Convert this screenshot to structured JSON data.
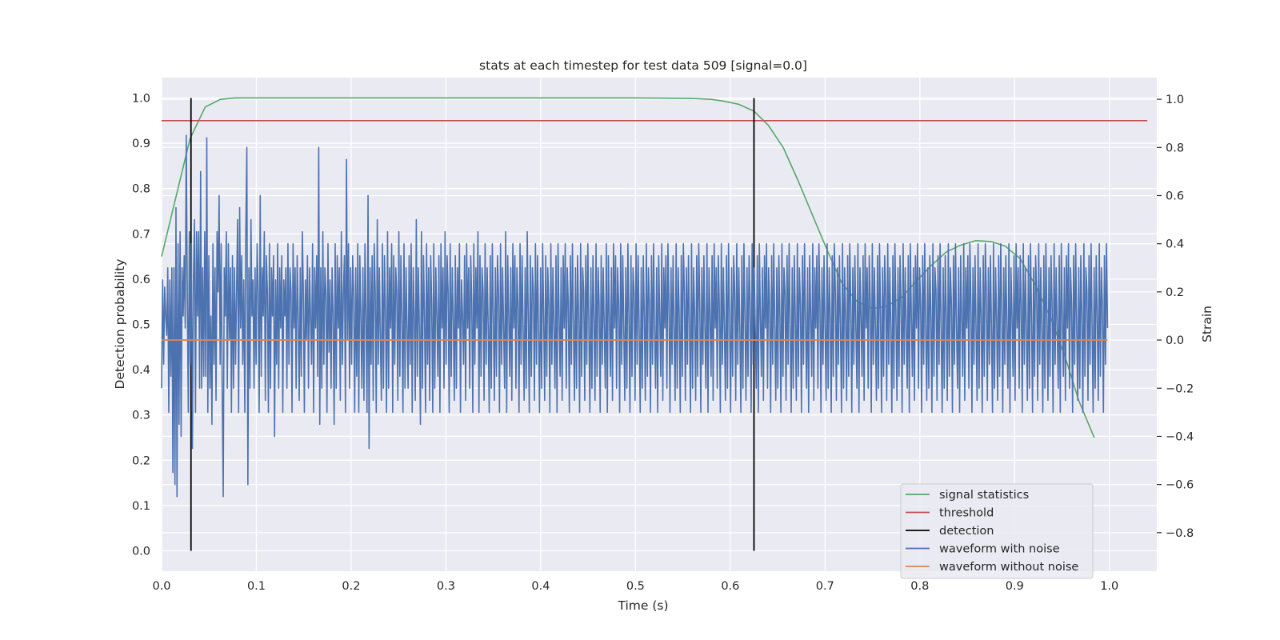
{
  "chart_data": {
    "type": "line",
    "title": "stats at each timestep for test data 509 [signal=0.0]",
    "xlabel": "Time (s)",
    "ylabel_left": "Detection probability",
    "ylabel_right": "Strain",
    "xlim": [
      0.0,
      1.05
    ],
    "ylim_left": [
      -0.045,
      1.045
    ],
    "ylim_right": [
      -0.96,
      1.09
    ],
    "x_ticks": [
      "0.0",
      "0.1",
      "0.2",
      "0.3",
      "0.4",
      "0.5",
      "0.6",
      "0.7",
      "0.8",
      "0.9",
      "1.0"
    ],
    "y_ticks_left": [
      "0.0",
      "0.1",
      "0.2",
      "0.3",
      "0.4",
      "0.5",
      "0.6",
      "0.7",
      "0.8",
      "0.9",
      "1.0"
    ],
    "y_ticks_right": [
      "−0.8",
      "−0.6",
      "−0.4",
      "−0.2",
      "0.0",
      "0.2",
      "0.4",
      "0.6",
      "0.8",
      "1.0"
    ],
    "grid": true,
    "legend_position": "lower right",
    "colors": {
      "signal": "#55a868",
      "threshold": "#c44e52",
      "detection": "#000000",
      "noisy": "#4c72b0",
      "clean": "#dd8452",
      "plot_background": "#eaeaf2",
      "grid": "#ffffff"
    },
    "series": [
      {
        "name": "signal statistics",
        "axis": "left",
        "color": "#55a868",
        "x": [
          0.0,
          0.015,
          0.03,
          0.046,
          0.062,
          0.078,
          0.1,
          0.2,
          0.3,
          0.4,
          0.5,
          0.56,
          0.58,
          0.593,
          0.609,
          0.625,
          0.64,
          0.656,
          0.671,
          0.687,
          0.703,
          0.718,
          0.734,
          0.75,
          0.765,
          0.781,
          0.796,
          0.812,
          0.828,
          0.843,
          0.859,
          0.875,
          0.89,
          0.906,
          0.921,
          0.937,
          0.953,
          0.968,
          0.984
        ],
        "y": [
          0.65,
          0.78,
          0.91,
          0.98,
          0.997,
          1.0,
          1.0,
          1.0,
          1.0,
          1.0,
          1.0,
          0.999,
          0.997,
          0.993,
          0.986,
          0.971,
          0.94,
          0.89,
          0.82,
          0.74,
          0.66,
          0.59,
          0.55,
          0.535,
          0.54,
          0.56,
          0.595,
          0.63,
          0.66,
          0.675,
          0.685,
          0.683,
          0.673,
          0.645,
          0.59,
          0.52,
          0.43,
          0.33,
          0.25
        ]
      },
      {
        "name": "threshold",
        "axis": "left",
        "color": "#c44e52",
        "x": [
          0.0,
          1.04
        ],
        "y": [
          0.95,
          0.95
        ]
      },
      {
        "name": "detection",
        "axis": "left",
        "color": "#000000",
        "segments": [
          {
            "x": 0.031,
            "y": [
              0.0,
              1.0
            ]
          },
          {
            "x": 0.625,
            "y": [
              0.0,
              1.0
            ]
          }
        ]
      },
      {
        "name": "waveform with noise",
        "axis": "right",
        "color": "#4c72b0",
        "x_range": [
          0.0,
          0.998
        ],
        "y": [
          -0.2,
          0.25,
          -0.1,
          0.22,
          0.1,
          0.02,
          0.3,
          -0.3,
          0.25,
          -0.15,
          0.3,
          -0.55,
          0.3,
          -0.6,
          0.55,
          -0.65,
          0.4,
          -0.35,
          0.45,
          -0.4,
          0.3,
          0.1,
          0.35,
          0.05,
          0.85,
          0.2,
          -0.3,
          0.45,
          -0.1,
          0.4,
          -0.45,
          0.25,
          0.5,
          -0.3,
          0.45,
          0.1,
          0.45,
          -0.2,
          0.7,
          -0.2,
          0.3,
          -0.15,
          0.45,
          -0.15,
          0.84,
          -0.3,
          0.35,
          -0.2,
          0.1,
          -0.35,
          0.4,
          -0.1,
          0.3,
          -0.25,
          0.45,
          0.2,
          0.6,
          -0.1,
          0.4,
          -0.2,
          -0.65,
          0.3,
          0.1,
          0.45,
          -0.2,
          0.4,
          0.0,
          0.3,
          -0.3,
          0.35,
          -0.2,
          0.3,
          -0.1,
          0.2,
          0.5,
          -0.3,
          0.55,
          0.05,
          0.35,
          -0.1,
          0.25,
          -0.3,
          0.45,
          0.8,
          -0.6,
          0.3,
          -0.2,
          0.5,
          0.1,
          0.25,
          -0.2,
          0.3,
          -0.1,
          0.4,
          0.2,
          -0.3,
          0.6,
          -0.15,
          0.3,
          0.1,
          0.45,
          -0.25,
          0.35,
          0.2,
          -0.3,
          0.4,
          -0.2,
          0.3,
          0.1,
          0.35,
          -0.4,
          0.25,
          -0.1,
          0.4,
          -0.2,
          0.3,
          0.05,
          0.35,
          -0.3,
          0.25,
          0.1,
          0.3,
          -0.2,
          0.4,
          -0.1,
          0.3,
          0.2,
          -0.3,
          0.4,
          0.05,
          0.3,
          -0.2,
          0.35,
          0.1,
          -0.25,
          0.3,
          -0.15,
          0.45,
          0.2,
          -0.3,
          0.25,
          0.0,
          0.35,
          -0.2,
          0.3,
          0.1,
          -0.1,
          0.4,
          -0.3,
          0.3,
          0.05,
          0.35,
          -0.15,
          0.8,
          -0.35,
          0.3,
          -0.2,
          0.45,
          -0.1,
          0.3,
          0.2,
          -0.3,
          0.4,
          -0.05,
          0.25,
          -0.2,
          0.3,
          0.1,
          -0.35,
          0.4,
          -0.2,
          0.35,
          0.05,
          0.3,
          -0.25,
          0.45,
          -0.1,
          0.2,
          0.35,
          -0.3,
          0.75,
          0.0,
          0.4,
          -0.2,
          0.3,
          -0.1,
          0.35,
          0.2,
          -0.3,
          0.3,
          -0.15,
          0.4,
          -0.3,
          0.35,
          0.1,
          -0.2,
          0.3,
          -0.25,
          0.4,
          0.1,
          -0.3,
          0.6,
          -0.45,
          0.3,
          -0.1,
          0.35,
          -0.25,
          0.4,
          0.2,
          -0.3,
          0.5,
          -0.1,
          0.3,
          0.0,
          -0.25,
          0.4,
          -0.2,
          0.35,
          0.1,
          -0.3,
          0.45,
          -0.2,
          0.3,
          0.05,
          0.4,
          -0.3,
          0.35,
          -0.1,
          0.3,
          0.2,
          -0.25,
          0.45,
          -0.15,
          0.35,
          0.1,
          -0.3,
          0.4,
          -0.2,
          0.3,
          0.05,
          -0.2,
          0.35,
          -0.1,
          0.4,
          -0.3,
          0.3,
          0.1,
          -0.25,
          0.5,
          -0.15,
          0.3,
          0.05,
          -0.35,
          0.45,
          -0.2,
          0.35,
          0.1,
          -0.3,
          0.4,
          -0.1,
          0.3,
          -0.25,
          0.35,
          0.15,
          -0.3,
          0.4,
          -0.2,
          0.3,
          0.1,
          -0.15,
          0.35,
          -0.3,
          0.4,
          0.05,
          0.3,
          -0.2,
          0.45,
          -0.1,
          0.35,
          0.2,
          -0.3,
          0.4,
          -0.15,
          0.3,
          0.1,
          -0.25,
          0.35,
          -0.2,
          0.3,
          0.05,
          0.4,
          -0.3,
          0.25,
          0.1,
          -0.1,
          0.35,
          -0.25,
          0.4,
          0.05,
          0.3,
          -0.2,
          0.35,
          0.15,
          -0.3,
          0.4,
          -0.1,
          0.3,
          0.05,
          0.45,
          -0.3,
          0.35,
          -0.15,
          0.3,
          0.2,
          -0.25,
          0.4,
          -0.1,
          0.3,
          0.05,
          -0.3,
          0.35,
          -0.2,
          0.4,
          0.1,
          -0.25,
          0.3,
          -0.15,
          0.35,
          0.2,
          -0.3,
          0.4,
          -0.1,
          0.3,
          0.05,
          -0.2,
          0.45,
          -0.3,
          0.35,
          0.1,
          -0.15,
          0.3,
          -0.25,
          0.4,
          0.05,
          0.35,
          -0.2,
          0.3,
          0.15,
          -0.3,
          0.4,
          -0.1,
          0.35,
          0.05,
          -0.25,
          0.3,
          -0.2,
          0.45,
          0.1,
          -0.3,
          0.35,
          -0.15,
          0.3,
          0.2,
          -0.25,
          0.4,
          -0.1,
          0.35,
          0.05,
          -0.3,
          0.3,
          -0.2,
          0.4,
          0.1,
          -0.25,
          0.35,
          -0.15,
          0.3,
          0.15,
          -0.3,
          0.4,
          -0.1,
          0.3,
          0.05,
          -0.2,
          0.35,
          -0.3,
          0.4,
          0.1,
          -0.15,
          0.3,
          -0.25,
          0.35,
          0.05,
          0.4,
          -0.2,
          0.3,
          0.15,
          -0.3,
          0.35,
          -0.1,
          0.4,
          0.05,
          -0.25,
          0.3,
          -0.2,
          0.35,
          0.1,
          -0.3,
          0.4,
          -0.15,
          0.3,
          0.2,
          -0.25,
          0.35,
          -0.1,
          0.4,
          0.05,
          -0.3,
          0.3,
          -0.2,
          0.35,
          0.1,
          -0.25,
          0.4,
          -0.15,
          0.3,
          0.15,
          -0.3,
          0.35,
          -0.1,
          0.3,
          0.05,
          -0.2,
          0.4,
          -0.3,
          0.35,
          0.1,
          -0.15,
          0.3,
          -0.25,
          0.4,
          0.05,
          0.35,
          -0.2,
          0.3,
          0.15,
          -0.3,
          0.4,
          -0.1,
          0.35,
          0.05,
          -0.25,
          0.3,
          -0.2,
          0.4,
          0.1,
          -0.3,
          0.35,
          -0.15,
          0.3,
          0.2,
          -0.25,
          0.4,
          -0.1,
          0.35,
          0.05,
          -0.3,
          0.3,
          -0.2,
          0.35,
          0.1,
          -0.25,
          0.4,
          -0.15,
          0.3,
          0.15,
          -0.3,
          0.35,
          -0.1,
          0.4,
          0.05,
          -0.2,
          0.3,
          -0.3,
          0.35,
          0.1,
          -0.15,
          0.4,
          -0.25,
          0.3,
          0.05,
          0.35,
          -0.2,
          0.4,
          0.15,
          -0.3,
          0.3,
          -0.1,
          0.35,
          0.05,
          -0.25,
          0.4,
          -0.2,
          0.3,
          0.1,
          -0.3,
          0.35,
          -0.15,
          0.4,
          0.2,
          -0.25,
          0.3,
          -0.1,
          0.35,
          0.05,
          -0.3,
          0.4,
          -0.2,
          0.3,
          0.1,
          -0.25,
          0.35,
          -0.15,
          0.4,
          0.15,
          -0.3,
          0.3,
          -0.1,
          0.35,
          0.05,
          -0.2,
          0.4,
          -0.3,
          0.3,
          0.1,
          -0.15,
          0.35,
          -0.25,
          0.4,
          0.05,
          0.3,
          -0.2,
          0.35,
          0.15,
          -0.3,
          0.4,
          -0.1,
          0.3,
          0.05,
          -0.25,
          0.35,
          -0.2,
          0.4,
          0.1,
          -0.3,
          0.3,
          -0.15,
          0.35,
          0.2,
          -0.25,
          0.4,
          -0.1,
          0.3,
          0.05,
          -0.3,
          0.35,
          -0.2,
          0.4,
          0.1,
          -0.25,
          0.3,
          -0.15,
          0.35,
          0.15,
          -0.3,
          0.4,
          -0.1,
          0.3,
          0.05,
          -0.2,
          0.35,
          -0.3,
          0.4,
          0.1,
          -0.15,
          0.3,
          -0.25,
          0.35,
          0.05,
          0.4,
          -0.2,
          0.3,
          0.15,
          -0.3,
          0.35,
          -0.1,
          0.4,
          0.05,
          -0.25,
          0.3,
          -0.2,
          0.35,
          0.1,
          -0.3,
          0.4,
          -0.15,
          0.3,
          0.2,
          -0.25,
          0.35,
          -0.1,
          0.4,
          0.05,
          -0.3,
          0.3,
          -0.2,
          0.35,
          0.1,
          -0.25,
          0.4,
          -0.15,
          0.3,
          0.15,
          -0.3,
          0.35,
          -0.1,
          0.4,
          0.05,
          -0.2,
          0.3,
          -0.3,
          0.35,
          0.1,
          -0.15,
          0.4,
          -0.25,
          0.3,
          0.05,
          0.35,
          -0.2,
          0.4,
          0.15,
          -0.3,
          0.3,
          -0.1,
          0.35,
          0.05,
          -0.25,
          0.4,
          -0.2,
          0.3,
          0.1,
          -0.3,
          0.35,
          -0.15,
          0.4,
          0.2,
          -0.25,
          0.3,
          -0.1,
          0.35,
          0.05,
          -0.3,
          0.4,
          -0.2,
          0.3,
          0.1,
          -0.25,
          0.35,
          -0.15,
          0.4,
          0.15,
          -0.3,
          0.3,
          -0.1,
          0.35,
          0.05,
          -0.2,
          0.4,
          -0.3,
          0.3,
          0.1,
          -0.15,
          0.35,
          -0.25,
          0.4,
          0.05,
          0.3,
          -0.2,
          0.35,
          0.15,
          -0.3,
          0.4,
          -0.1,
          0.3,
          0.05,
          -0.25,
          0.35,
          -0.2,
          0.4,
          0.1,
          -0.3,
          0.3,
          -0.15,
          0.35,
          0.2,
          -0.25,
          0.4,
          -0.1,
          0.3,
          0.05,
          -0.3,
          0.35,
          -0.2,
          0.4,
          0.1,
          -0.25,
          0.3,
          -0.15,
          0.35,
          0.15,
          -0.3,
          0.4,
          -0.1,
          0.3,
          0.05,
          -0.2,
          0.35,
          -0.3,
          0.4,
          0.1,
          -0.15,
          0.3,
          -0.25,
          0.35,
          0.05,
          0.4,
          -0.2,
          0.3,
          0.15,
          -0.3,
          0.35,
          -0.1,
          0.4,
          0.05,
          -0.25,
          0.3,
          -0.2,
          0.35,
          0.1,
          -0.3,
          0.4,
          -0.15,
          0.3,
          0.2,
          -0.25,
          0.35,
          -0.1,
          0.4,
          0.05,
          -0.3,
          0.3,
          -0.2,
          0.35,
          0.1,
          -0.25,
          0.4,
          -0.15,
          0.3,
          0.15,
          -0.3,
          0.35,
          -0.1,
          0.4,
          0.05,
          -0.2,
          0.3,
          -0.3,
          0.35,
          0.1,
          -0.15,
          0.4,
          -0.25,
          0.3,
          0.05,
          0.35,
          -0.2,
          0.4,
          0.15,
          -0.3,
          0.3,
          -0.1,
          0.35,
          0.05,
          -0.25,
          0.4,
          -0.2,
          0.3,
          0.1,
          -0.3,
          0.35,
          -0.15,
          0.4,
          0.2,
          -0.25,
          0.3,
          -0.1,
          0.35,
          0.05,
          -0.3,
          0.4,
          -0.2,
          0.3,
          0.1,
          -0.25,
          0.35,
          -0.15,
          0.4,
          0.15,
          -0.3,
          0.3,
          -0.1,
          0.35,
          0.05,
          -0.2,
          0.4,
          -0.3,
          0.3,
          0.1,
          -0.15,
          0.35,
          -0.25,
          0.4,
          0.05,
          0.3,
          -0.2,
          0.35,
          0.15,
          -0.3,
          0.4,
          -0.1,
          0.3,
          0.05,
          -0.25,
          0.35,
          -0.2,
          0.4,
          0.1,
          -0.3,
          0.3,
          -0.15,
          0.35,
          0.2,
          -0.25,
          0.4,
          -0.1,
          0.3,
          0.05,
          -0.3,
          0.35,
          -0.2,
          0.4,
          0.1,
          -0.25,
          0.3,
          -0.15,
          0.35,
          0.15,
          -0.3,
          0.4,
          -0.1,
          0.3,
          0.05,
          -0.2,
          0.35,
          -0.3,
          0.4,
          0.1,
          -0.15,
          0.3,
          -0.25,
          0.35,
          0.05,
          0.4,
          -0.2,
          0.3,
          0.15,
          -0.3,
          0.35,
          -0.1,
          0.4,
          0.05,
          -0.25,
          0.3,
          -0.2,
          0.35,
          0.1,
          -0.3,
          0.4,
          -0.15,
          0.3,
          0.2,
          -0.25,
          0.35,
          -0.1,
          0.4,
          0.05,
          -0.3,
          0.3,
          -0.2,
          0.35,
          0.1,
          -0.25,
          0.4,
          -0.15,
          0.3,
          0.15,
          -0.3,
          0.35,
          -0.1,
          0.4,
          0.05
        ]
      },
      {
        "name": "waveform without noise",
        "axis": "right",
        "color": "#dd8452",
        "x": [
          0.0,
          0.998
        ],
        "y": [
          0.0,
          0.0
        ]
      }
    ]
  }
}
